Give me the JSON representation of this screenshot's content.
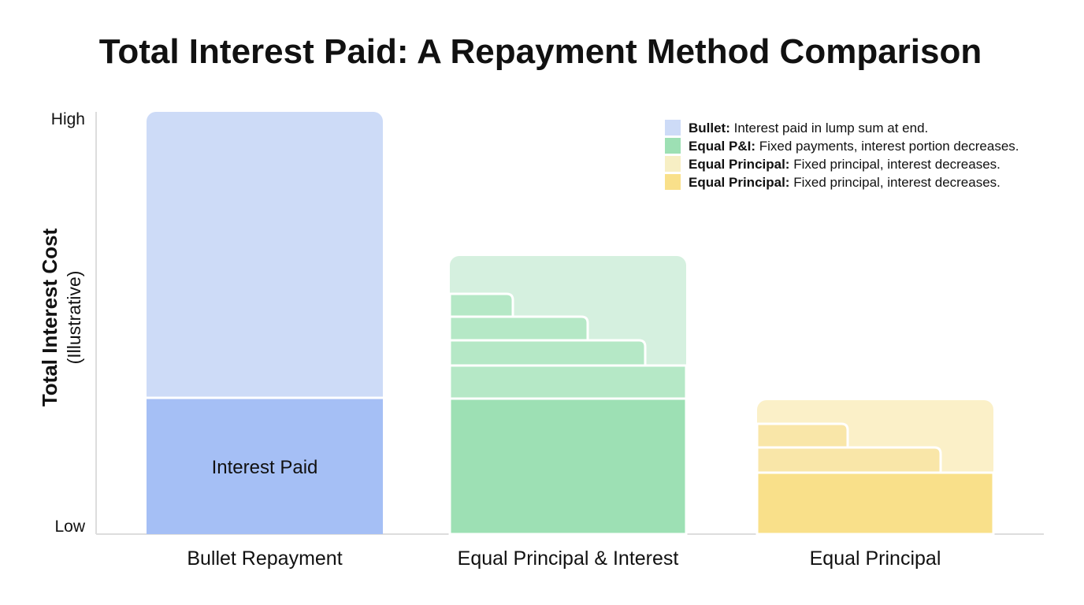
{
  "title": "Total Interest Paid: A Repayment Method Comparison",
  "y_axis": {
    "label": "Total Interest Cost",
    "sublabel": "(Illustrative)",
    "high": "High",
    "low": "Low"
  },
  "legend": [
    {
      "term": "Bullet:",
      "text": "Interest paid in lump sum at end."
    },
    {
      "term": "Equal P&I:",
      "text": "Fixed payments, interest portion decreases."
    },
    {
      "term": "Equal Principal:",
      "text": "Fixed principal, interest decreases."
    },
    {
      "term": "Equal Principal:",
      "text": "Fixed principal, interest decreases."
    }
  ],
  "bar_annotation": "Interest Paid",
  "categories": [
    "Bullet Repayment",
    "Equal Principal & Interest",
    "Equal Principal"
  ]
}
